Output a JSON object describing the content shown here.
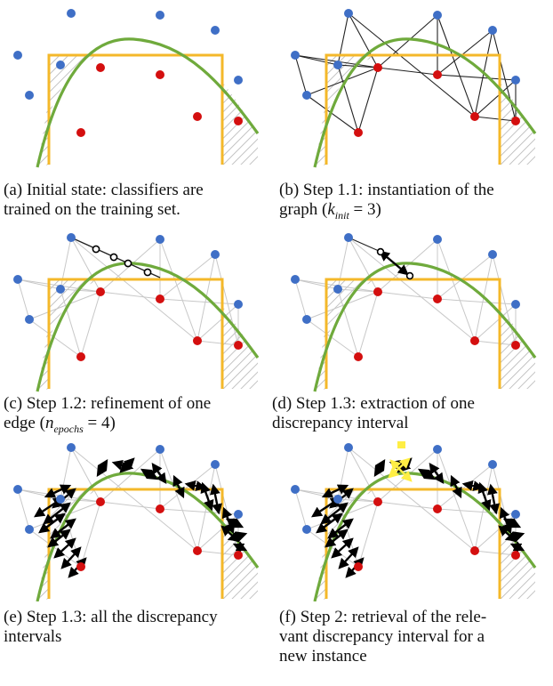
{
  "colors": {
    "blue_point": "#3f6fc6",
    "red_point": "#d40f0f",
    "classifier_square": "#f4b82a",
    "classifier_curve": "#6faa3c",
    "graph_edge": "#222222",
    "light_edge": "#c8c8c8",
    "arrow": "#000000",
    "highlight": "#ffee44",
    "hatch": "#b5b5b5"
  },
  "panels": [
    {
      "id": "a",
      "caption_l1": "(a) Initial state: classifiers are",
      "caption_l2": "trained on the training set.",
      "caption_l3": ""
    },
    {
      "id": "b",
      "caption_l1": "(b) Step 1.1: instantiation of the",
      "caption_l2_pre": "graph (",
      "caption_l2_var": "k",
      "caption_l2_sub": "init",
      "caption_l2_post": " = 3)",
      "caption_l3": ""
    },
    {
      "id": "c",
      "caption_l1": "(c) Step 1.2: refinement of one",
      "caption_l2_pre": "edge (",
      "caption_l2_var": "n",
      "caption_l2_sub": "epochs",
      "caption_l2_post": " = 4)",
      "caption_l3": ""
    },
    {
      "id": "d",
      "caption_l1": "(d) Step 1.3: extraction of one",
      "caption_l2": "discrepancy interval",
      "caption_l3": ""
    },
    {
      "id": "e",
      "caption_l1": "(e) Step 1.3: all the discrepancy",
      "caption_l2": "intervals",
      "caption_l3": ""
    },
    {
      "id": "f",
      "caption_l1": "(f) Step 2: retrieval of the rele-",
      "caption_l2": "vant discrepancy interval for a",
      "caption_l3": "new instance"
    }
  ]
}
